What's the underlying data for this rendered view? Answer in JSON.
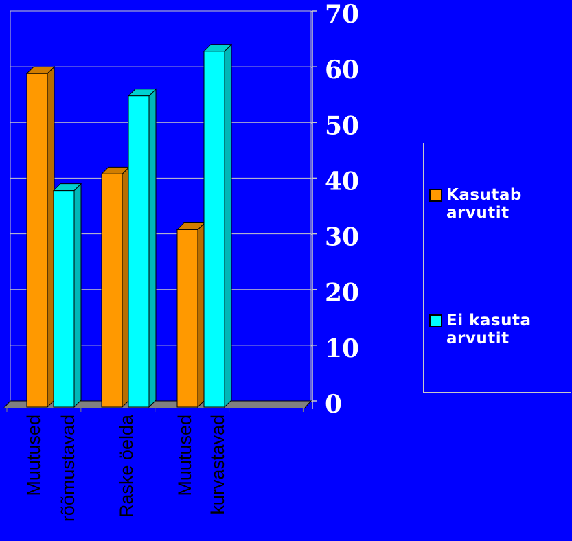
{
  "chart_data": {
    "type": "bar",
    "categories": [
      [
        "Muutused",
        "rõõmustavad"
      ],
      [
        "Raske öelda"
      ],
      [
        "Muutused",
        "kurvastavad"
      ]
    ],
    "series": [
      {
        "name": "Kasutab arvutit",
        "values": [
          59,
          41,
          31
        ],
        "color": "#FF9900"
      },
      {
        "name": "Ei kasuta arvutit",
        "values": [
          38,
          55,
          63
        ],
        "color": "#00FFFF"
      }
    ],
    "ylim": [
      0,
      70
    ],
    "yticks": [
      "0",
      "10",
      "20",
      "30",
      "40",
      "50",
      "60",
      "70"
    ],
    "grid": true,
    "legend_position": "right",
    "colors": {
      "background": "#0000FF",
      "grid": "#c8c8c8",
      "axis": "#808080",
      "floor": "#808080"
    }
  },
  "legend": {
    "items": [
      {
        "label": "Kasutab arvutit",
        "color": "#FF9900"
      },
      {
        "label": "Ei kasuta arvutit",
        "color": "#00FFFF"
      }
    ]
  }
}
